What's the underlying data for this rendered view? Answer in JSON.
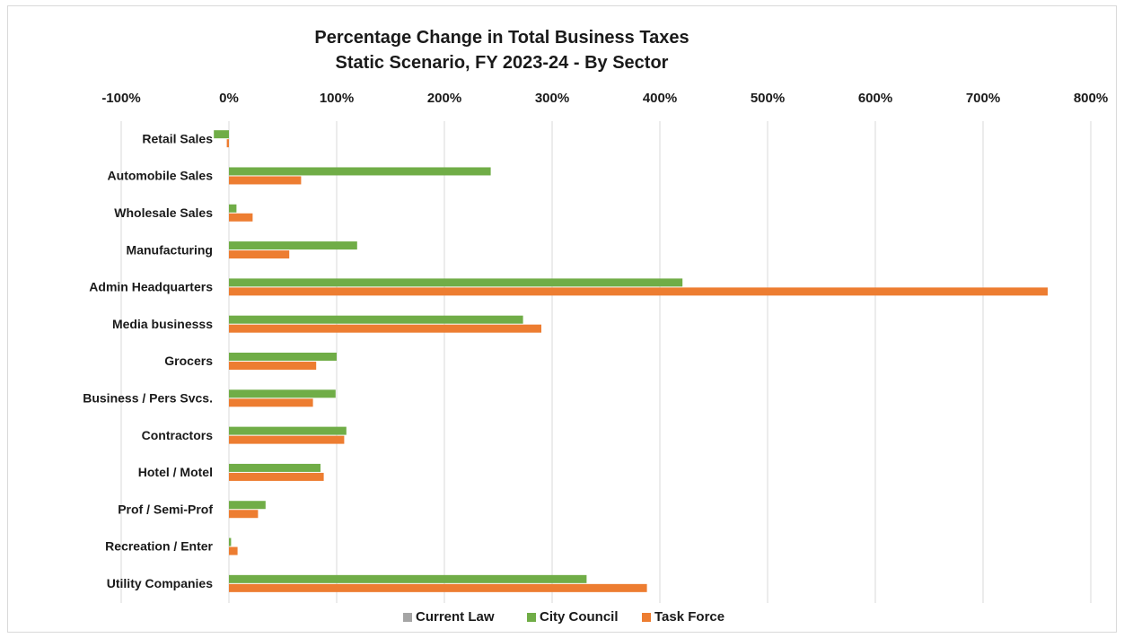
{
  "chart_data": {
    "type": "bar",
    "orientation": "horizontal",
    "title_lines": [
      "Percentage Change in Total Business Taxes",
      "Static Scenario, FY 2023-24 - By Sector"
    ],
    "x_axis_position": "top",
    "xlim": [
      -100,
      800
    ],
    "x_ticks": [
      -100,
      0,
      100,
      200,
      300,
      400,
      500,
      600,
      700,
      800
    ],
    "x_tick_labels": [
      "-100%",
      "0%",
      "100%",
      "200%",
      "300%",
      "400%",
      "500%",
      "600%",
      "700%",
      "800%"
    ],
    "grid": "vertical",
    "legend_position": "bottom",
    "categories": [
      "Retail Sales",
      "Automobile Sales",
      "Wholesale Sales",
      "Manufacturing",
      "Admin Headquarters",
      "Media businesss",
      "Grocers",
      "Business / Pers Svcs.",
      "Contractors",
      "Hotel / Motel",
      "Prof / Semi-Prof",
      "Recreation / Enter",
      "Utility Companies"
    ],
    "series": [
      {
        "name": "Current Law",
        "color": "#a5a5a5",
        "values": [
          0,
          0,
          0,
          0,
          0,
          0,
          0,
          0,
          0,
          0,
          0,
          0,
          0
        ]
      },
      {
        "name": "City Council",
        "color": "#70ad47",
        "values": [
          -14,
          243,
          7,
          119,
          421,
          273,
          100,
          99,
          109,
          85,
          34,
          2,
          332
        ]
      },
      {
        "name": "Task Force",
        "color": "#ed7d31",
        "values": [
          -2,
          67,
          22,
          56,
          760,
          290,
          81,
          78,
          107,
          88,
          27,
          8,
          388
        ]
      }
    ]
  }
}
